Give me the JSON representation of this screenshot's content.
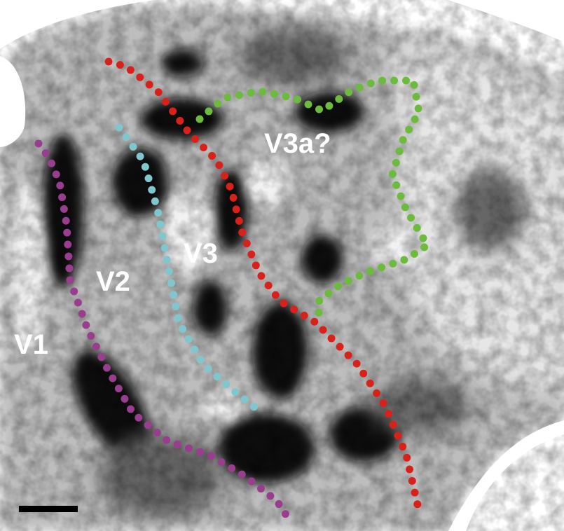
{
  "image": {
    "labels": [
      "V1",
      "V2",
      "V3",
      "V3a?"
    ]
  }
}
